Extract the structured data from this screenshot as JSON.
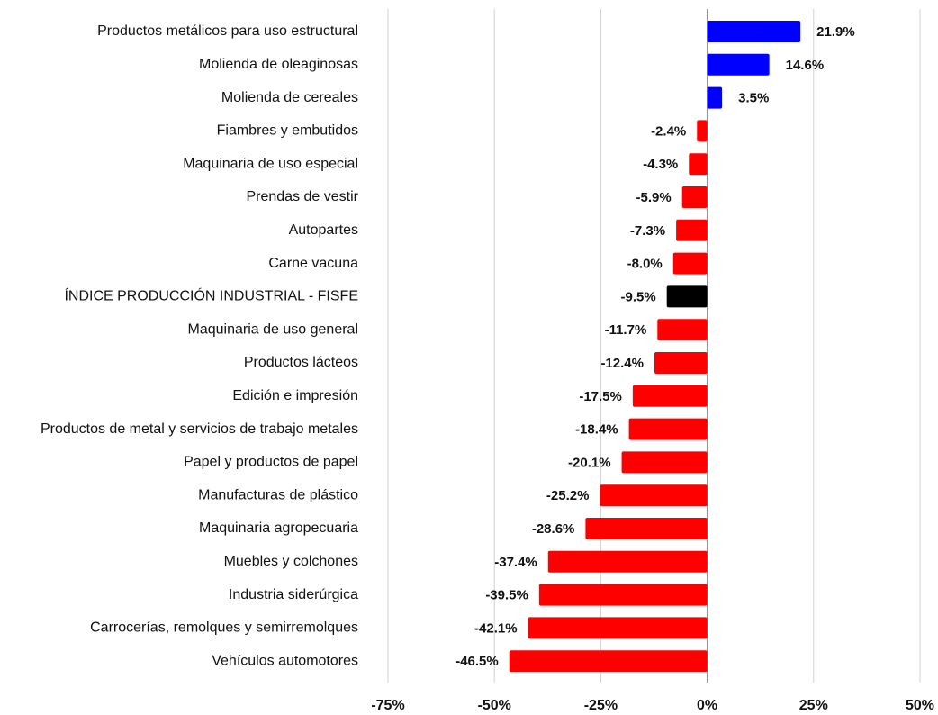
{
  "chart_data": {
    "type": "bar",
    "orientation": "horizontal",
    "categories": [
      "Productos metálicos para uso estructural",
      "Molienda de oleaginosas",
      "Molienda de cereales",
      "Fiambres y embutidos",
      "Maquinaria de uso especial",
      "Prendas de vestir",
      "Autopartes",
      "Carne vacuna",
      "ÍNDICE PRODUCCIÓN INDUSTRIAL - FISFE",
      "Maquinaria de uso general",
      "Productos lácteos",
      "Edición e impresión",
      "Productos de metal y servicios de trabajo metales",
      "Papel y productos de papel",
      "Manufacturas de plástico",
      "Maquinaria agropecuaria",
      "Muebles y colchones",
      "Industria siderúrgica",
      "Carrocerías, remolques y semirremolques",
      "Vehículos automotores"
    ],
    "values": [
      21.9,
      14.6,
      3.5,
      -2.4,
      -4.3,
      -5.9,
      -7.3,
      -8.0,
      -9.5,
      -11.7,
      -12.4,
      -17.5,
      -18.4,
      -20.1,
      -25.2,
      -28.6,
      -37.4,
      -39.5,
      -42.1,
      -46.5
    ],
    "value_labels": [
      "21.9%",
      "14.6%",
      "3.5%",
      "-2.4%",
      "-4.3%",
      "-5.9%",
      "-7.3%",
      "-8.0%",
      "-9.5%",
      "-11.7%",
      "-12.4%",
      "-17.5%",
      "-18.4%",
      "-20.1%",
      "-25.2%",
      "-28.6%",
      "-37.4%",
      "-39.5%",
      "-42.1%",
      "-46.5%"
    ],
    "colors": [
      "#0000ff",
      "#0000ff",
      "#0000ff",
      "#ff0000",
      "#ff0000",
      "#ff0000",
      "#ff0000",
      "#ff0000",
      "#000000",
      "#ff0000",
      "#ff0000",
      "#ff0000",
      "#ff0000",
      "#ff0000",
      "#ff0000",
      "#ff0000",
      "#ff0000",
      "#ff0000",
      "#ff0000",
      "#ff0000"
    ],
    "xlim": [
      -75,
      50
    ],
    "xticks": [
      {
        "value": -75,
        "label": "-75%"
      },
      {
        "value": -50,
        "label": "-50%"
      },
      {
        "value": -25,
        "label": "-25%"
      },
      {
        "value": 0,
        "label": "0%"
      },
      {
        "value": 25,
        "label": "25%"
      },
      {
        "value": 50,
        "label": "50%"
      }
    ],
    "grid": true
  }
}
